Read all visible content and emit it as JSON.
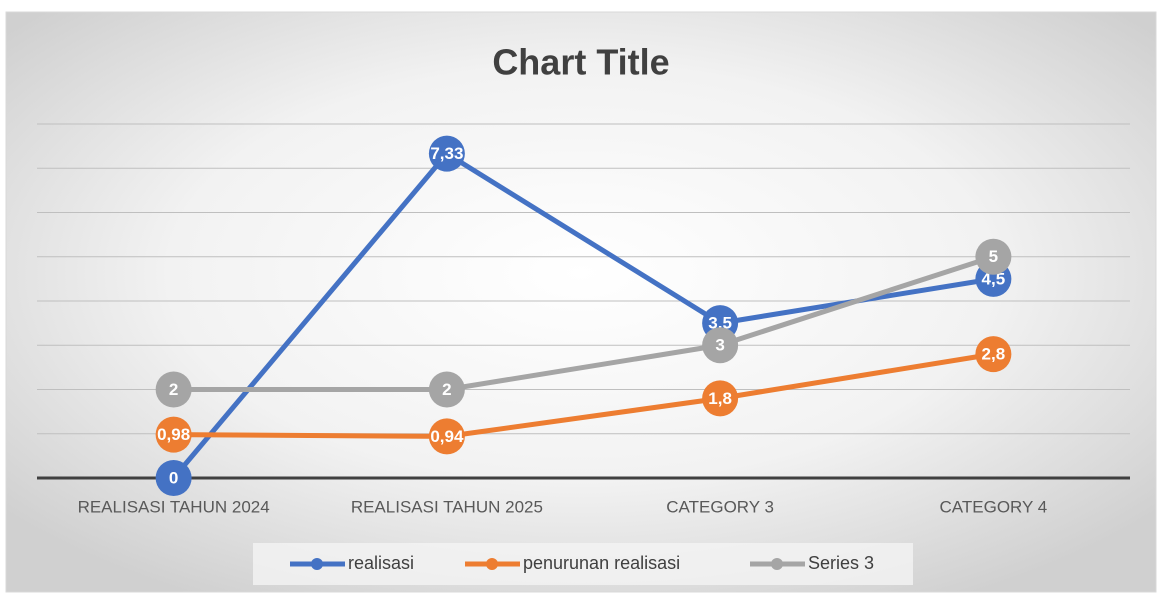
{
  "chart_data": {
    "type": "line",
    "title": "Chart Title",
    "categories": [
      "REALISASI TAHUN 2024",
      "REALISASI TAHUN 2025",
      "CATEGORY 3",
      "CATEGORY 4"
    ],
    "series": [
      {
        "name": "realisasi",
        "color": "#4472c4",
        "values": [
          0,
          7.33,
          3.5,
          4.5
        ],
        "value_labels": [
          "0",
          "7,33",
          "3,5",
          "4,5"
        ]
      },
      {
        "name": "penurunan realisasi",
        "color": "#ed7d31",
        "values": [
          0.98,
          0.94,
          1.8,
          2.8
        ],
        "value_labels": [
          "0,98",
          "0,94",
          "1,8",
          "2,8"
        ]
      },
      {
        "name": "Series 3",
        "color": "#a5a5a5",
        "values": [
          2,
          2,
          3,
          5
        ]
      }
    ],
    "ylim": [
      0,
      8
    ],
    "yticks": [
      0,
      1,
      2,
      3,
      4,
      5,
      6,
      7,
      8
    ],
    "grid": true,
    "legend": "bottom"
  }
}
